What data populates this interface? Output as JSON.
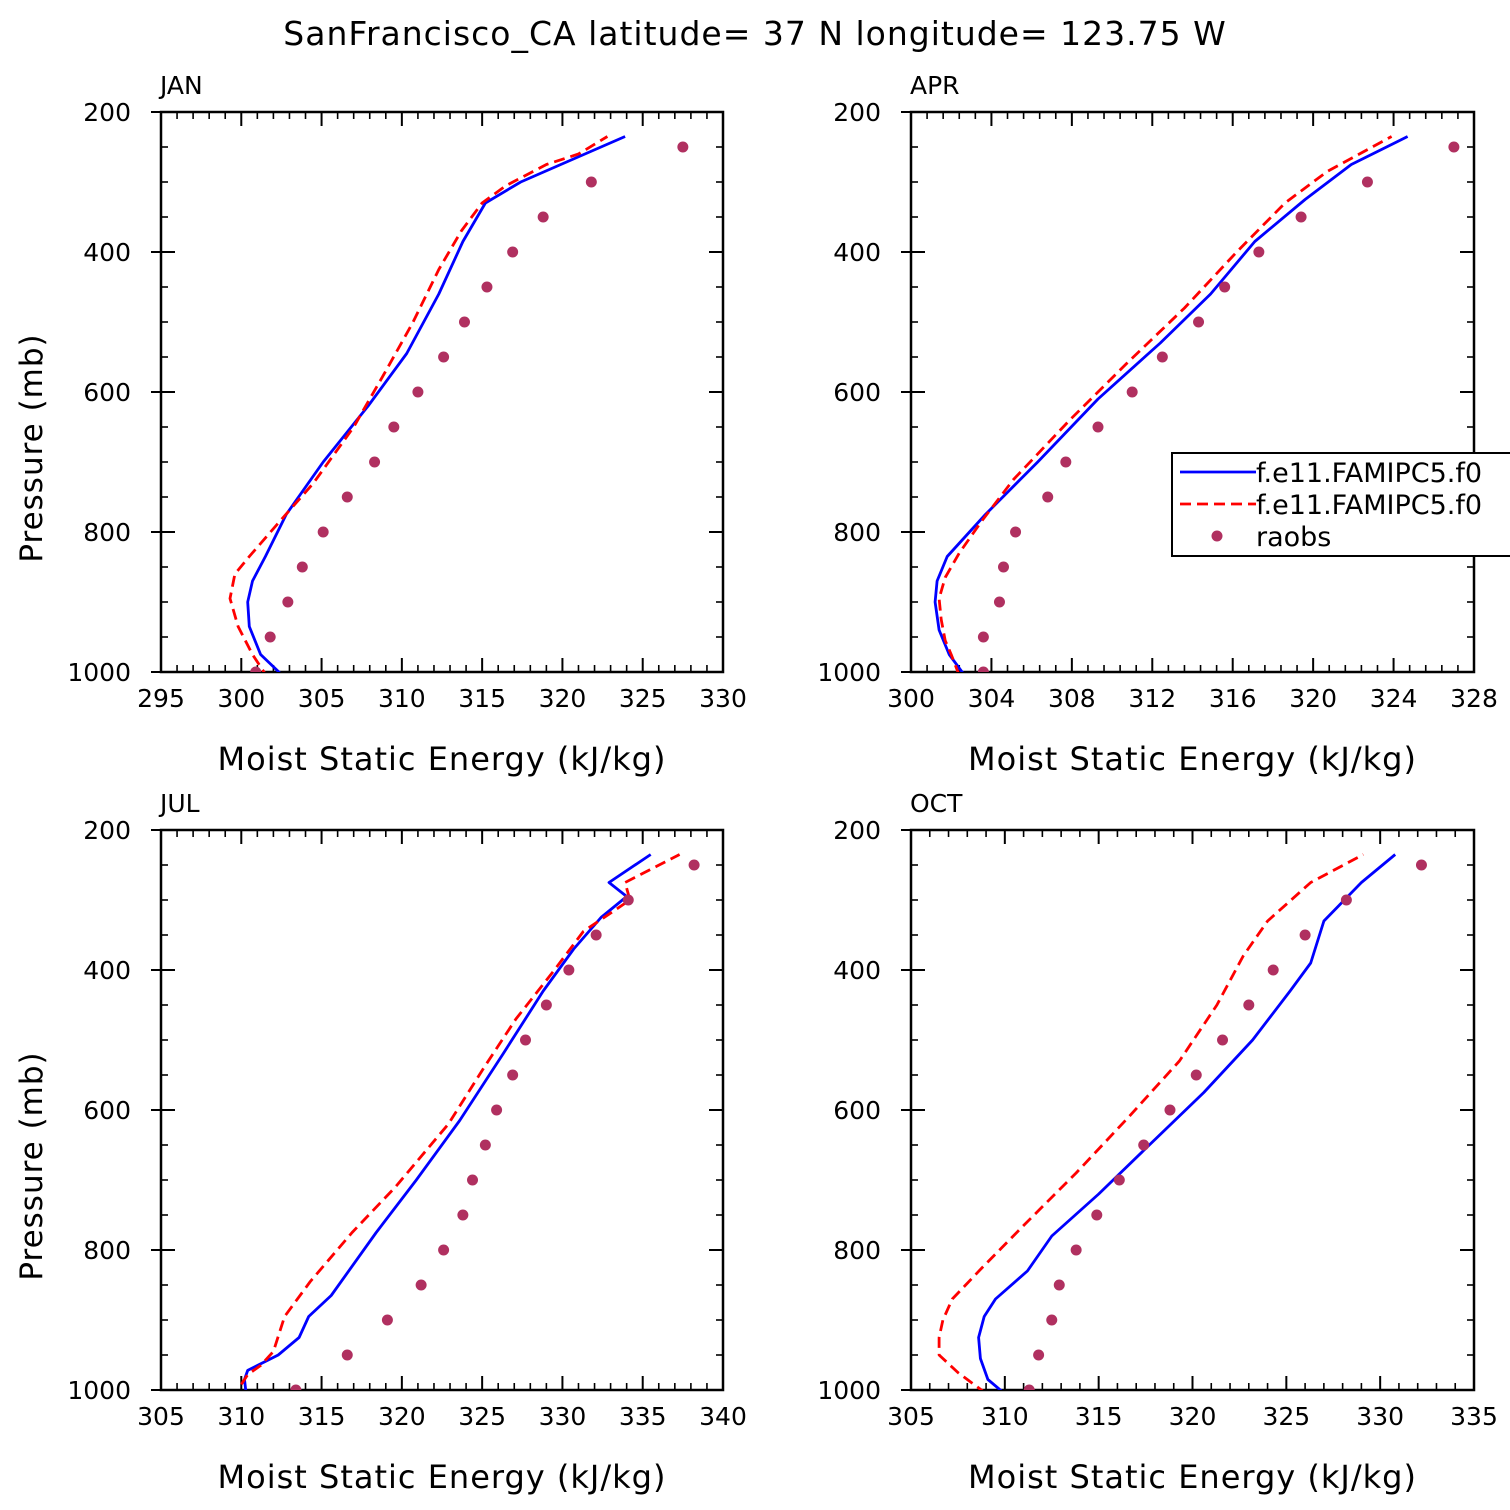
{
  "figure": {
    "title": "SanFrancisco_CA  latitude= 37 N longitude= 123.75 W",
    "y_label": "Pressure (mb)",
    "x_label": "Moist Static Energy (kJ/kg)"
  },
  "legend": {
    "panel": "APR",
    "entries": [
      {
        "label": "f.e11.FAMIPC5.f0",
        "style": "solid",
        "color": "#0000ff"
      },
      {
        "label": "f.e11.FAMIPC5.f0",
        "style": "dashed",
        "color": "#ff0000"
      },
      {
        "label": "raobs",
        "style": "marker",
        "color": "#b03060"
      }
    ]
  },
  "chart_data": [
    {
      "type": "line",
      "title": "JAN",
      "xlabel": "Moist Static Energy (kJ/kg)",
      "ylabel": "Pressure (mb)",
      "xlim": [
        295,
        330
      ],
      "ylim": [
        1000,
        200
      ],
      "x_ticks": [
        "295",
        "300",
        "305",
        "310",
        "315",
        "320",
        "325",
        "330"
      ],
      "y_ticks": [
        "200",
        "400",
        "600",
        "800",
        "1000"
      ],
      "series": [
        {
          "name": "f.e11.FAMIPC5.f0",
          "style": "solid",
          "color": "#0000ff",
          "points": [
            [
              302.8,
              1010
            ],
            [
              301.2,
              975
            ],
            [
              300.5,
              935
            ],
            [
              300.4,
              900
            ],
            [
              300.7,
              870
            ],
            [
              301.5,
              835
            ],
            [
              302.8,
              775
            ],
            [
              305.1,
              700
            ],
            [
              307.9,
              620
            ],
            [
              310.3,
              545
            ],
            [
              312.3,
              460
            ],
            [
              313.8,
              385
            ],
            [
              315.2,
              330
            ],
            [
              317.4,
              300
            ],
            [
              319.9,
              275
            ],
            [
              323.9,
              235
            ]
          ]
        },
        {
          "name": "f.e11.FAMIPC5.f0",
          "style": "dashed",
          "color": "#ff0000",
          "points": [
            [
              301.7,
              1010
            ],
            [
              300.7,
              975
            ],
            [
              299.8,
              935
            ],
            [
              299.3,
              895
            ],
            [
              299.6,
              860
            ],
            [
              300.5,
              835
            ],
            [
              302.2,
              790
            ],
            [
              304.5,
              730
            ],
            [
              307,
              650
            ],
            [
              309,
              570
            ],
            [
              310.7,
              500
            ],
            [
              312.3,
              425
            ],
            [
              313.7,
              370
            ],
            [
              315,
              330
            ],
            [
              316.5,
              305
            ],
            [
              319,
              275
            ],
            [
              321,
              260
            ],
            [
              322.8,
              235
            ]
          ]
        },
        {
          "name": "raobs",
          "style": "marker",
          "color": "#b03060",
          "points": [
            [
              300.9,
              1000
            ],
            [
              301.8,
              950
            ],
            [
              302.9,
              900
            ],
            [
              303.8,
              850
            ],
            [
              305.1,
              800
            ],
            [
              306.6,
              750
            ],
            [
              308.3,
              700
            ],
            [
              309.5,
              650
            ],
            [
              311,
              600
            ],
            [
              312.6,
              550
            ],
            [
              313.9,
              500
            ],
            [
              315.3,
              450
            ],
            [
              316.9,
              400
            ],
            [
              318.8,
              350
            ],
            [
              321.8,
              300
            ],
            [
              327.5,
              250
            ]
          ]
        }
      ]
    },
    {
      "type": "line",
      "title": "APR",
      "xlabel": "Moist Static Energy (kJ/kg)",
      "ylabel": "",
      "xlim": [
        300,
        328
      ],
      "ylim": [
        1000,
        200
      ],
      "x_ticks": [
        "300",
        "304",
        "308",
        "312",
        "316",
        "320",
        "324",
        "328"
      ],
      "y_ticks": [
        "200",
        "400",
        "600",
        "800",
        "1000"
      ],
      "series": [
        {
          "name": "f.e11.FAMIPC5.f0",
          "style": "solid",
          "color": "#0000ff",
          "points": [
            [
              302.8,
              1010
            ],
            [
              301.9,
              975
            ],
            [
              301.4,
              940
            ],
            [
              301.2,
              900
            ],
            [
              301.3,
              870
            ],
            [
              301.8,
              835
            ],
            [
              303.7,
              775
            ],
            [
              306.3,
              700
            ],
            [
              309.3,
              610
            ],
            [
              312.4,
              530
            ],
            [
              314.9,
              460
            ],
            [
              317.1,
              385
            ],
            [
              319.6,
              325
            ],
            [
              321.9,
              275
            ],
            [
              324.7,
              235
            ]
          ]
        },
        {
          "name": "f.e11.FAMIPC5.f0",
          "style": "dashed",
          "color": "#ff0000",
          "points": [
            [
              302.4,
              1005
            ],
            [
              302,
              975
            ],
            [
              301.7,
              955
            ],
            [
              301.5,
              925
            ],
            [
              301.4,
              895
            ],
            [
              301.7,
              865
            ],
            [
              302.4,
              830
            ],
            [
              303.5,
              785
            ],
            [
              305.1,
              725
            ],
            [
              307.9,
              640
            ],
            [
              310.7,
              560
            ],
            [
              313.6,
              480
            ],
            [
              316.2,
              400
            ],
            [
              318.6,
              330
            ],
            [
              320.7,
              285
            ],
            [
              323.9,
              235
            ]
          ]
        },
        {
          "name": "raobs",
          "style": "marker",
          "color": "#b03060",
          "points": [
            [
              303.6,
              1000
            ],
            [
              303.6,
              950
            ],
            [
              304.4,
              900
            ],
            [
              304.6,
              850
            ],
            [
              305.2,
              800
            ],
            [
              306.8,
              750
            ],
            [
              307.7,
              700
            ],
            [
              309.3,
              650
            ],
            [
              311,
              600
            ],
            [
              312.5,
              550
            ],
            [
              314.3,
              500
            ],
            [
              315.6,
              450
            ],
            [
              317.3,
              400
            ],
            [
              319.4,
              350
            ],
            [
              322.7,
              300
            ],
            [
              327,
              250
            ]
          ]
        }
      ]
    },
    {
      "type": "line",
      "title": "JUL",
      "xlabel": "Moist Static Energy (kJ/kg)",
      "ylabel": "Pressure (mb)",
      "xlim": [
        305,
        340
      ],
      "ylim": [
        1000,
        200
      ],
      "x_ticks": [
        "305",
        "310",
        "315",
        "320",
        "325",
        "330",
        "335",
        "340"
      ],
      "y_ticks": [
        "200",
        "400",
        "600",
        "800",
        "1000"
      ],
      "series": [
        {
          "name": "f.e11.FAMIPC5.f0",
          "style": "solid",
          "color": "#0000ff",
          "points": [
            [
              310.3,
              1005
            ],
            [
              310.2,
              985
            ],
            [
              310.4,
              972
            ],
            [
              311,
              965
            ],
            [
              312.3,
              950
            ],
            [
              313.6,
              925
            ],
            [
              314.2,
              895
            ],
            [
              315.6,
              865
            ],
            [
              318.4,
              775
            ],
            [
              320.9,
              700
            ],
            [
              323.6,
              615
            ],
            [
              326.3,
              520
            ],
            [
              328.8,
              430
            ],
            [
              330.7,
              370
            ],
            [
              332.4,
              325
            ],
            [
              334,
              295
            ],
            [
              332.9,
              275
            ],
            [
              335.5,
              235
            ]
          ]
        },
        {
          "name": "f.e11.FAMIPC5.f0",
          "style": "dashed",
          "color": "#ff0000",
          "points": [
            [
              310,
              992
            ],
            [
              310.4,
              978
            ],
            [
              311.2,
              965
            ],
            [
              312,
              945
            ],
            [
              312.7,
              895
            ],
            [
              314.3,
              845
            ],
            [
              316.9,
              775
            ],
            [
              319.6,
              710
            ],
            [
              322.9,
              620
            ],
            [
              325.1,
              540
            ],
            [
              327.1,
              470
            ],
            [
              329.5,
              400
            ],
            [
              331.3,
              345
            ],
            [
              334.2,
              300
            ],
            [
              333.9,
              275
            ],
            [
              337.3,
              235
            ]
          ]
        },
        {
          "name": "raobs",
          "style": "marker",
          "color": "#b03060",
          "points": [
            [
              313.4,
              1000
            ],
            [
              316.6,
              950
            ],
            [
              319.1,
              900
            ],
            [
              321.2,
              850
            ],
            [
              322.6,
              800
            ],
            [
              323.8,
              750
            ],
            [
              324.4,
              700
            ],
            [
              325.2,
              650
            ],
            [
              325.9,
              600
            ],
            [
              326.9,
              550
            ],
            [
              327.7,
              500
            ],
            [
              329,
              450
            ],
            [
              330.4,
              400
            ],
            [
              332.1,
              350
            ],
            [
              334.1,
              300
            ],
            [
              338.2,
              250
            ]
          ]
        }
      ]
    },
    {
      "type": "line",
      "title": "OCT",
      "xlabel": "Moist Static Energy (kJ/kg)",
      "ylabel": "",
      "xlim": [
        305,
        335
      ],
      "ylim": [
        1000,
        200
      ],
      "x_ticks": [
        "305",
        "310",
        "315",
        "320",
        "325",
        "330",
        "335"
      ],
      "y_ticks": [
        "200",
        "400",
        "600",
        "800",
        "1000"
      ],
      "series": [
        {
          "name": "f.e11.FAMIPC5.f0",
          "style": "solid",
          "color": "#0000ff",
          "points": [
            [
              310.2,
              1010
            ],
            [
              309.1,
              985
            ],
            [
              308.7,
              955
            ],
            [
              308.6,
              925
            ],
            [
              308.9,
              895
            ],
            [
              309.5,
              870
            ],
            [
              311.2,
              830
            ],
            [
              312.5,
              780
            ],
            [
              315,
              720
            ],
            [
              317.7,
              650
            ],
            [
              320.6,
              575
            ],
            [
              323.2,
              500
            ],
            [
              325.2,
              430
            ],
            [
              326.3,
              390
            ],
            [
              327,
              330
            ],
            [
              329,
              275
            ],
            [
              330.8,
              235
            ]
          ]
        },
        {
          "name": "f.e11.FAMIPC5.f0",
          "style": "dashed",
          "color": "#ff0000",
          "points": [
            [
              309,
              1005
            ],
            [
              307.5,
              975
            ],
            [
              306.5,
              950
            ],
            [
              306.5,
              925
            ],
            [
              306.7,
              900
            ],
            [
              307.2,
              870
            ],
            [
              308.8,
              825
            ],
            [
              311,
              765
            ],
            [
              313.8,
              690
            ],
            [
              316.6,
              610
            ],
            [
              319.3,
              530
            ],
            [
              321.3,
              450
            ],
            [
              322.7,
              380
            ],
            [
              324,
              330
            ],
            [
              326.3,
              275
            ],
            [
              329.1,
              235
            ]
          ]
        },
        {
          "name": "raobs",
          "style": "marker",
          "color": "#b03060",
          "points": [
            [
              311.3,
              1000
            ],
            [
              311.8,
              950
            ],
            [
              312.5,
              900
            ],
            [
              312.9,
              850
            ],
            [
              313.8,
              800
            ],
            [
              314.9,
              750
            ],
            [
              316.1,
              700
            ],
            [
              317.4,
              650
            ],
            [
              318.8,
              600
            ],
            [
              320.2,
              550
            ],
            [
              321.6,
              500
            ],
            [
              323,
              450
            ],
            [
              324.3,
              400
            ],
            [
              326,
              350
            ],
            [
              328.2,
              300
            ],
            [
              332.2,
              250
            ]
          ]
        }
      ]
    }
  ]
}
